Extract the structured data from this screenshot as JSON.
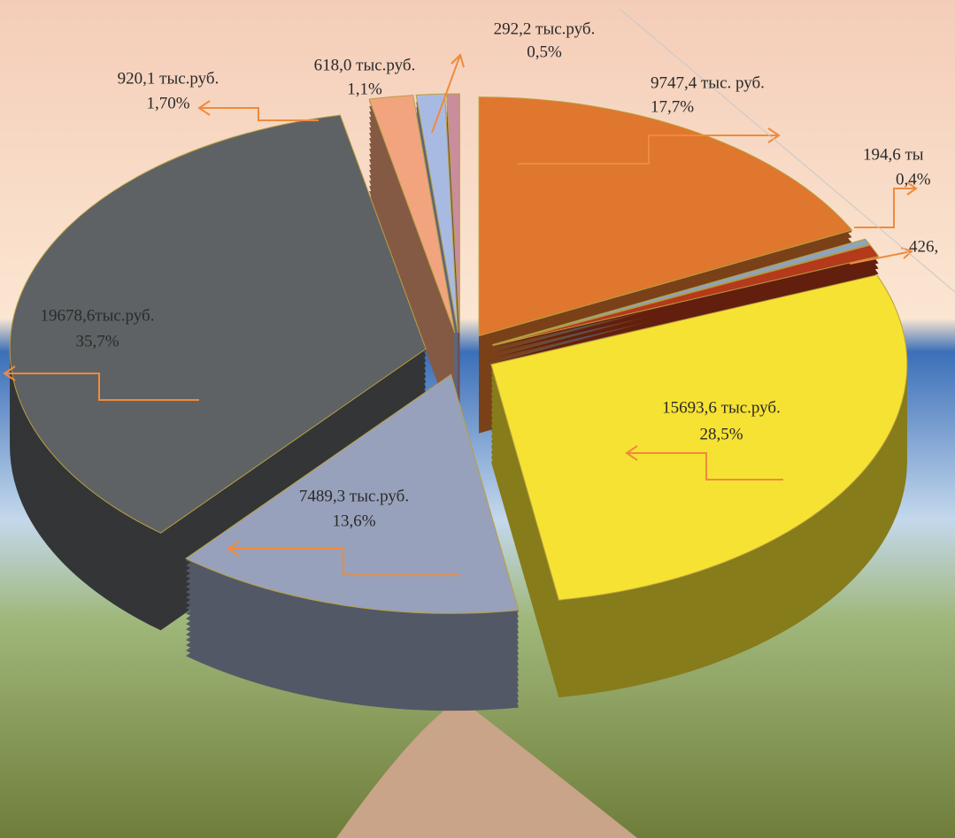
{
  "chart_data": {
    "type": "pie",
    "values": [
      17.7,
      0.4,
      0.8,
      28.5,
      13.6,
      35.7,
      1.7,
      1.1,
      0.5
    ],
    "value_labels": [
      "17,7%",
      "0,4%",
      null,
      "28,5%",
      "13,6%",
      "35,7%",
      "1,70%",
      "1,1%",
      "0,5%"
    ],
    "amount_labels": [
      "9747,4 тыс. руб.",
      "194,6 ты",
      "426,",
      "15693,6 тыс.руб.",
      "7489,3 тыс.руб.",
      "19678,6тыс.руб.",
      "920,1 тыс.руб.",
      "618,0 тыс.руб.",
      "292,2 тыс.руб."
    ],
    "colors": [
      "#df772e",
      "#8ea3bd",
      "#b5391b",
      "#f6e232",
      "#98a1bb",
      "#5e6265",
      "#f2a47f",
      "#a9bae2",
      "#c98d9b"
    ]
  }
}
